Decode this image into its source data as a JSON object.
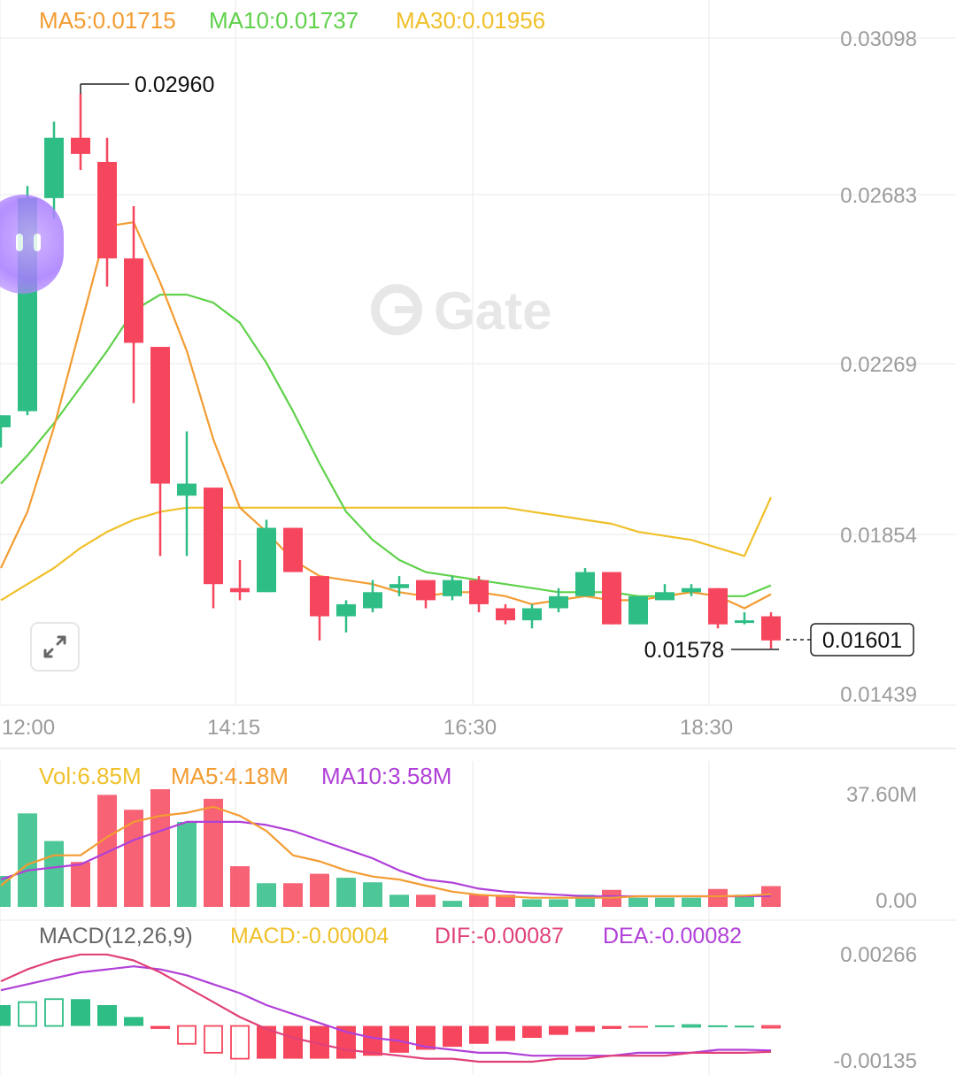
{
  "watermark": "Gate",
  "colors": {
    "up": "#2ebd85",
    "down": "#f6465d",
    "ma5": "#f39c32",
    "ma10": "#5fd14a",
    "ma30": "#f0c02a",
    "vol_ma10": "#b040d8",
    "dif": "#e0407a",
    "dea": "#b040d8",
    "macd_label": "#f0c02a",
    "grid": "#f0f0f0",
    "axis_text": "#9b9b9b"
  },
  "main_legend": {
    "ma5": "MA5:0.01715",
    "ma10": "MA10:0.01737",
    "ma30": "MA30:0.01956"
  },
  "main_price_axis": [
    "0.03098",
    "0.02683",
    "0.02269",
    "0.01854",
    "0.01439"
  ],
  "time_axis": [
    "12:00",
    "14:15",
    "16:30",
    "18:30"
  ],
  "annotations": {
    "high": "0.02960",
    "low": "0.01578",
    "last_price": "0.01601"
  },
  "volume_legend": {
    "vol": "Vol:6.85M",
    "ma5": "MA5:4.18M",
    "ma10": "MA10:3.58M"
  },
  "volume_axis": [
    "37.60M",
    "0.00"
  ],
  "macd_legend": {
    "name": "MACD(12,26,9)",
    "macd": "MACD:-0.00004",
    "dif": "DIF:-0.00087",
    "dea": "DEA:-0.00082"
  },
  "macd_axis": [
    "0.00266",
    "-0.00135"
  ],
  "chart_data": {
    "type": "candlestick",
    "price_range": [
      0.01439,
      0.03098
    ],
    "candles": [
      {
        "o": 0.0213,
        "h": 0.0216,
        "l": 0.0208,
        "c": 0.0216
      },
      {
        "o": 0.0217,
        "h": 0.0273,
        "l": 0.0216,
        "c": 0.027
      },
      {
        "o": 0.027,
        "h": 0.0289,
        "l": 0.0265,
        "c": 0.0285
      },
      {
        "o": 0.0285,
        "h": 0.0296,
        "l": 0.0277,
        "c": 0.0281
      },
      {
        "o": 0.0279,
        "h": 0.0285,
        "l": 0.0248,
        "c": 0.0255
      },
      {
        "o": 0.0255,
        "h": 0.0268,
        "l": 0.0219,
        "c": 0.0234
      },
      {
        "o": 0.0233,
        "h": 0.0233,
        "l": 0.0181,
        "c": 0.0199
      },
      {
        "o": 0.0196,
        "h": 0.0212,
        "l": 0.0181,
        "c": 0.0199
      },
      {
        "o": 0.0198,
        "h": 0.0198,
        "l": 0.0168,
        "c": 0.0174
      },
      {
        "o": 0.0173,
        "h": 0.018,
        "l": 0.017,
        "c": 0.0172
      },
      {
        "o": 0.0172,
        "h": 0.019,
        "l": 0.0172,
        "c": 0.0188
      },
      {
        "o": 0.0188,
        "h": 0.0188,
        "l": 0.0177,
        "c": 0.0177
      },
      {
        "o": 0.0176,
        "h": 0.0176,
        "l": 0.016,
        "c": 0.0166
      },
      {
        "o": 0.0166,
        "h": 0.017,
        "l": 0.0162,
        "c": 0.0169
      },
      {
        "o": 0.0168,
        "h": 0.0175,
        "l": 0.0167,
        "c": 0.0172
      },
      {
        "o": 0.0173,
        "h": 0.0176,
        "l": 0.0171,
        "c": 0.0174
      },
      {
        "o": 0.0175,
        "h": 0.0175,
        "l": 0.0168,
        "c": 0.017
      },
      {
        "o": 0.0171,
        "h": 0.0176,
        "l": 0.017,
        "c": 0.0175
      },
      {
        "o": 0.0175,
        "h": 0.0176,
        "l": 0.0167,
        "c": 0.0169
      },
      {
        "o": 0.0168,
        "h": 0.0169,
        "l": 0.0164,
        "c": 0.0165
      },
      {
        "o": 0.0165,
        "h": 0.0169,
        "l": 0.0163,
        "c": 0.0168
      },
      {
        "o": 0.0168,
        "h": 0.0173,
        "l": 0.0167,
        "c": 0.0171
      },
      {
        "o": 0.0171,
        "h": 0.0178,
        "l": 0.0171,
        "c": 0.0177
      },
      {
        "o": 0.0177,
        "h": 0.0177,
        "l": 0.0164,
        "c": 0.0164
      },
      {
        "o": 0.0164,
        "h": 0.0171,
        "l": 0.0164,
        "c": 0.0171
      },
      {
        "o": 0.017,
        "h": 0.0174,
        "l": 0.017,
        "c": 0.0172
      },
      {
        "o": 0.0172,
        "h": 0.0174,
        "l": 0.0171,
        "c": 0.0173
      },
      {
        "o": 0.0173,
        "h": 0.0173,
        "l": 0.0163,
        "c": 0.0164
      },
      {
        "o": 0.0165,
        "h": 0.0167,
        "l": 0.0164,
        "c": 0.0165
      },
      {
        "o": 0.0166,
        "h": 0.0167,
        "l": 0.0158,
        "c": 0.016
      }
    ],
    "ma5": [
      0.0178,
      0.0192,
      0.0213,
      0.0238,
      0.0263,
      0.0264,
      0.0249,
      0.0232,
      0.021,
      0.0193,
      0.0187,
      0.018,
      0.0176,
      0.0175,
      0.0174,
      0.0172,
      0.0171,
      0.0172,
      0.0172,
      0.0171,
      0.0169,
      0.017,
      0.0171,
      0.017,
      0.017,
      0.0171,
      0.0172,
      0.0171,
      0.0168,
      0.01715
    ],
    "ma10": [
      0.0199,
      0.0206,
      0.0214,
      0.0223,
      0.0232,
      0.0242,
      0.0246,
      0.0246,
      0.0244,
      0.0239,
      0.0229,
      0.0217,
      0.0204,
      0.0192,
      0.0185,
      0.018,
      0.0177,
      0.0176,
      0.0175,
      0.0174,
      0.0173,
      0.0172,
      0.0172,
      0.0172,
      0.0171,
      0.0171,
      0.0172,
      0.0171,
      0.0171,
      0.01737
    ],
    "ma30": [
      0.017,
      0.0174,
      0.0178,
      0.0183,
      0.0187,
      0.019,
      0.0192,
      0.0193,
      0.0193,
      0.0193,
      0.0193,
      0.0193,
      0.0193,
      0.0193,
      0.0193,
      0.0193,
      0.0193,
      0.0193,
      0.0193,
      0.0193,
      0.0192,
      0.0191,
      0.019,
      0.0189,
      0.0187,
      0.0186,
      0.0185,
      0.0183,
      0.0181,
      0.01956
    ],
    "volume": {
      "unit": "M",
      "range": [
        0,
        37.6
      ],
      "values": [
        10.2,
        30.8,
        21.7,
        14.8,
        36.9,
        32.0,
        40.8,
        28.0,
        35.6,
        13.4,
        7.8,
        7.8,
        10.9,
        9.6,
        8.1,
        4.0,
        4.0,
        2.0,
        4.0,
        4.0,
        2.5,
        2.5,
        4.0,
        5.6,
        3.0,
        3.0,
        3.0,
        5.9,
        4.0,
        6.85
      ],
      "ma5": [
        7.0,
        14.0,
        17.0,
        17.0,
        23.0,
        28.0,
        30.0,
        31.0,
        33.0,
        30.0,
        25.0,
        17.0,
        15.0,
        12.0,
        10.0,
        9.0,
        7.0,
        5.0,
        4.0,
        3.5,
        3.0,
        3.0,
        3.0,
        3.0,
        3.5,
        3.5,
        3.5,
        3.5,
        3.7,
        4.18
      ],
      "ma10": [
        9.0,
        12.0,
        13.0,
        14.0,
        18.0,
        22.0,
        25.0,
        28.0,
        28.0,
        28.0,
        27.0,
        25.0,
        22.0,
        19.0,
        16.0,
        12.0,
        9.0,
        8.0,
        6.0,
        5.0,
        4.5,
        4.0,
        3.5,
        3.5,
        3.5,
        3.5,
        3.5,
        3.5,
        3.5,
        3.58
      ]
    },
    "macd": {
      "range": [
        -0.00135,
        0.00266
      ],
      "hist": [
        0.0007,
        0.0008,
        0.0009,
        0.0009,
        0.0007,
        0.0003,
        -0.0001,
        -0.0006,
        -0.0009,
        -0.0011,
        -0.0011,
        -0.0011,
        -0.0011,
        -0.0011,
        -0.001,
        -0.0009,
        -0.0008,
        -0.0007,
        -0.0006,
        -0.0005,
        -0.0004,
        -0.0003,
        -0.0002,
        -0.0001,
        -3e-05,
        2e-05,
        3e-05,
        2e-05,
        1e-05,
        -4e-05
      ],
      "dif": [
        0.0015,
        0.0019,
        0.0022,
        0.0024,
        0.0024,
        0.0022,
        0.0018,
        0.0013,
        0.0008,
        0.0003,
        -0.0001,
        -0.0004,
        -0.0006,
        -0.0008,
        -0.0009,
        -0.001,
        -0.0011,
        -0.0011,
        -0.0012,
        -0.0012,
        -0.0012,
        -0.0011,
        -0.0011,
        -0.001,
        -0.001,
        -0.001,
        -0.0009,
        -0.0009,
        -0.0009,
        -0.00087
      ],
      "dea": [
        0.0012,
        0.0014,
        0.0016,
        0.0018,
        0.0019,
        0.002,
        0.0019,
        0.0017,
        0.0014,
        0.0011,
        0.0007,
        0.0004,
        0.0001,
        -0.0002,
        -0.0004,
        -0.0005,
        -0.0007,
        -0.0008,
        -0.0009,
        -0.0009,
        -0.001,
        -0.001,
        -0.001,
        -0.001,
        -0.0009,
        -0.0009,
        -0.0009,
        -0.0008,
        -0.0008,
        -0.00082
      ]
    }
  }
}
